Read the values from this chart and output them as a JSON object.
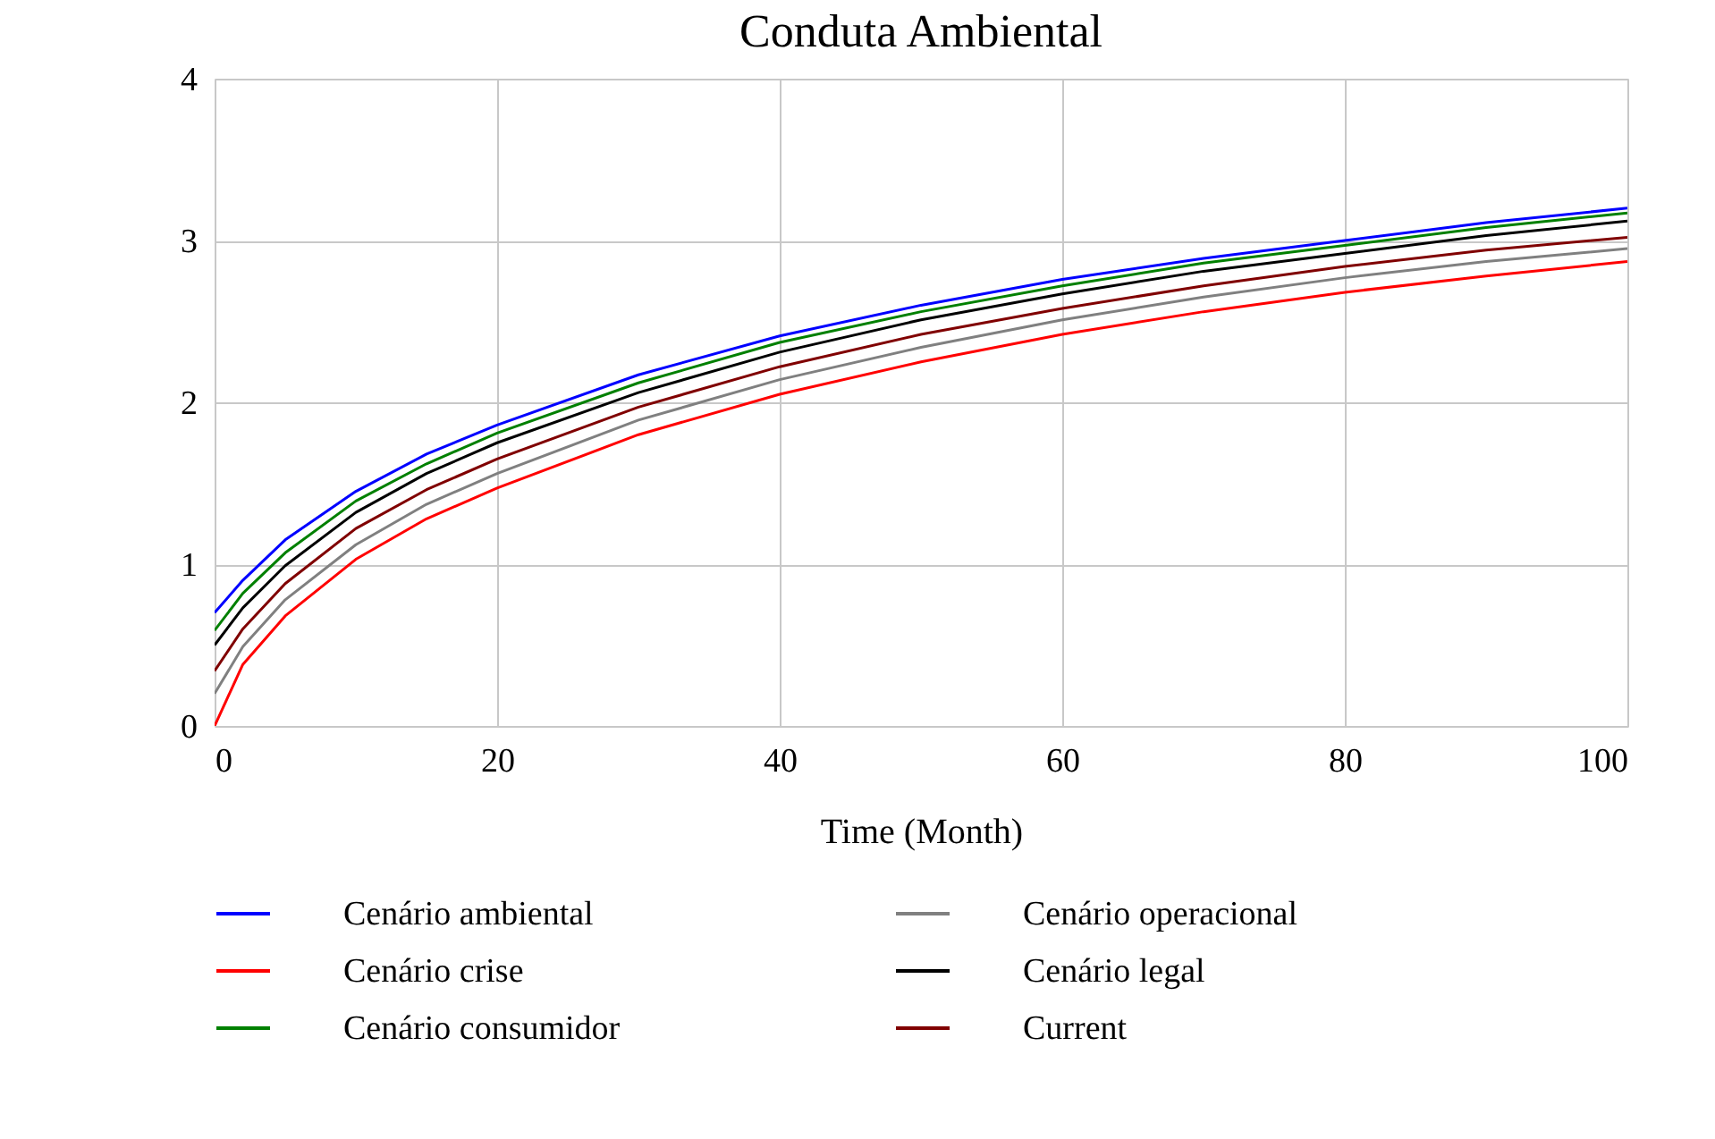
{
  "chart_data": {
    "type": "line",
    "title": "Conduta Ambiental",
    "xlabel": "Time (Month)",
    "x": [
      0,
      2,
      5,
      10,
      15,
      20,
      30,
      40,
      50,
      60,
      70,
      80,
      90,
      100
    ],
    "series": [
      {
        "name": "Cenário ambiental",
        "color": "#0000ff",
        "values": [
          0.7,
          0.9,
          1.15,
          1.45,
          1.68,
          1.86,
          2.17,
          2.41,
          2.6,
          2.76,
          2.89,
          3.0,
          3.11,
          3.2
        ]
      },
      {
        "name": "Cenário crise",
        "color": "#ff0000",
        "values": [
          0,
          0.38,
          0.68,
          1.03,
          1.28,
          1.47,
          1.8,
          2.05,
          2.25,
          2.42,
          2.56,
          2.68,
          2.78,
          2.87
        ]
      },
      {
        "name": "Cenário consumidor",
        "color": "#008000",
        "values": [
          0.59,
          0.82,
          1.07,
          1.39,
          1.62,
          1.81,
          2.12,
          2.37,
          2.56,
          2.72,
          2.86,
          2.97,
          3.08,
          3.17
        ]
      },
      {
        "name": "Cenário operacional",
        "color": "#808080",
        "values": [
          0.2,
          0.49,
          0.78,
          1.12,
          1.37,
          1.56,
          1.89,
          2.14,
          2.34,
          2.51,
          2.65,
          2.77,
          2.87,
          2.95
        ]
      },
      {
        "name": "Cenário legal",
        "color": "#000000",
        "values": [
          0.5,
          0.73,
          0.99,
          1.32,
          1.56,
          1.75,
          2.06,
          2.31,
          2.51,
          2.67,
          2.81,
          2.92,
          3.03,
          3.12
        ]
      },
      {
        "name": "Current",
        "color": "#800000",
        "values": [
          0.34,
          0.6,
          0.88,
          1.22,
          1.46,
          1.65,
          1.97,
          2.22,
          2.42,
          2.58,
          2.72,
          2.84,
          2.94,
          3.02
        ]
      }
    ],
    "xlim": [
      0,
      100
    ],
    "xticks": [
      0,
      20,
      40,
      60,
      80,
      100
    ],
    "ylim": [
      0,
      4
    ],
    "yticks": [
      0,
      1,
      2,
      3,
      4
    ],
    "grid": true,
    "legend": "bottom",
    "marker": "none",
    "line_style": "solid"
  }
}
